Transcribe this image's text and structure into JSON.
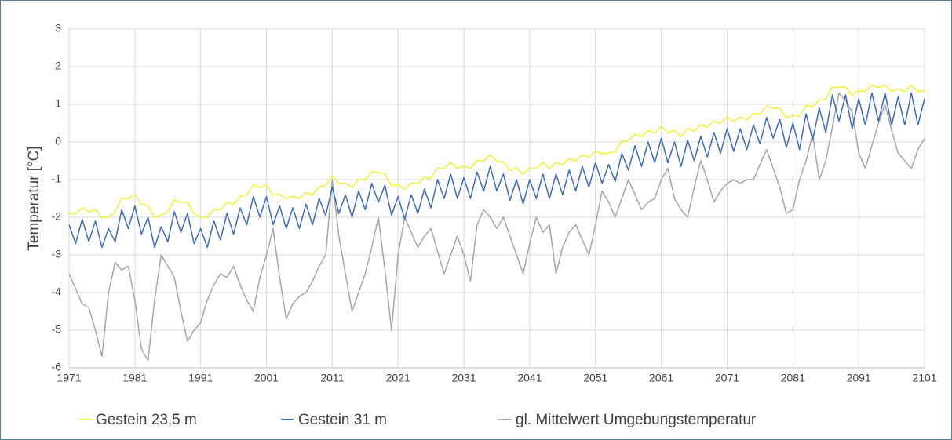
{
  "chart_data": {
    "type": "line",
    "y_label": "Temperatur [°C]",
    "legend": "bottom",
    "grid": true,
    "xlim": [
      1971,
      2101
    ],
    "xticks": [
      1971,
      1981,
      1991,
      2001,
      2011,
      2021,
      2031,
      2041,
      2051,
      2061,
      2071,
      2081,
      2091,
      2101
    ],
    "ylim": [
      -6,
      3
    ],
    "yticks": [
      -6,
      -5,
      -4,
      -3,
      -2,
      -1,
      0,
      1,
      2,
      3
    ],
    "x": [
      1971,
      1972,
      1973,
      1974,
      1975,
      1976,
      1977,
      1978,
      1979,
      1980,
      1981,
      1982,
      1983,
      1984,
      1985,
      1986,
      1987,
      1988,
      1989,
      1990,
      1991,
      1992,
      1993,
      1994,
      1995,
      1996,
      1997,
      1998,
      1999,
      2000,
      2001,
      2002,
      2003,
      2004,
      2005,
      2006,
      2007,
      2008,
      2009,
      2010,
      2011,
      2012,
      2013,
      2014,
      2015,
      2016,
      2017,
      2018,
      2019,
      2020,
      2021,
      2022,
      2023,
      2024,
      2025,
      2026,
      2027,
      2028,
      2029,
      2030,
      2031,
      2032,
      2033,
      2034,
      2035,
      2036,
      2037,
      2038,
      2039,
      2040,
      2041,
      2042,
      2043,
      2044,
      2045,
      2046,
      2047,
      2048,
      2049,
      2050,
      2051,
      2052,
      2053,
      2054,
      2055,
      2056,
      2057,
      2058,
      2059,
      2060,
      2061,
      2062,
      2063,
      2064,
      2065,
      2066,
      2067,
      2068,
      2069,
      2070,
      2071,
      2072,
      2073,
      2074,
      2075,
      2076,
      2077,
      2078,
      2079,
      2080,
      2081,
      2082,
      2083,
      2084,
      2085,
      2086,
      2087,
      2088,
      2089,
      2090,
      2091,
      2092,
      2093,
      2094,
      2095,
      2096,
      2097,
      2098,
      2099,
      2100,
      2101
    ],
    "series": [
      {
        "name": "Gestein 23,5 m",
        "color": "#f2f230",
        "values": [
          -1.89,
          -1.91,
          -1.74,
          -1.86,
          -1.79,
          -2.01,
          -1.99,
          -1.86,
          -1.49,
          -1.51,
          -1.39,
          -1.66,
          -1.69,
          -2.01,
          -1.94,
          -1.86,
          -1.54,
          -1.61,
          -1.59,
          -1.91,
          -1.99,
          -2.01,
          -1.79,
          -1.81,
          -1.59,
          -1.66,
          -1.44,
          -1.41,
          -1.14,
          -1.21,
          -1.14,
          -1.41,
          -1.39,
          -1.51,
          -1.44,
          -1.51,
          -1.34,
          -1.41,
          -1.19,
          -1.16,
          -0.89,
          -1.11,
          -1.09,
          -1.21,
          -0.99,
          -1.01,
          -0.79,
          -0.81,
          -0.84,
          -1.16,
          -1.14,
          -1.26,
          -1.09,
          -1.11,
          -0.94,
          -0.96,
          -0.69,
          -0.71,
          -0.54,
          -0.71,
          -0.64,
          -0.71,
          -0.49,
          -0.51,
          -0.34,
          -0.51,
          -0.54,
          -0.76,
          -0.69,
          -0.86,
          -0.69,
          -0.71,
          -0.54,
          -0.71,
          -0.54,
          -0.61,
          -0.44,
          -0.51,
          -0.34,
          -0.41,
          -0.24,
          -0.31,
          -0.29,
          -0.26,
          0.01,
          0.04,
          0.21,
          0.14,
          0.31,
          0.24,
          0.41,
          0.24,
          0.31,
          0.14,
          0.36,
          0.29,
          0.46,
          0.39,
          0.56,
          0.49,
          0.66,
          0.54,
          0.66,
          0.59,
          0.76,
          0.74,
          0.96,
          0.89,
          0.91,
          0.64,
          0.71,
          0.69,
          0.96,
          0.94,
          1.11,
          1.14,
          1.46,
          1.44,
          1.46,
          1.24,
          1.36,
          1.34,
          1.51,
          1.44,
          1.51,
          1.34,
          1.41,
          1.34,
          1.51,
          1.34,
          1.36
        ]
      },
      {
        "name": "Gestein 31 m",
        "color": "#3a6bbf",
        "values": [
          -2.2,
          -2.7,
          -2.05,
          -2.65,
          -2.1,
          -2.8,
          -2.3,
          -2.65,
          -1.8,
          -2.3,
          -1.7,
          -2.45,
          -2.0,
          -2.8,
          -2.25,
          -2.65,
          -1.85,
          -2.4,
          -1.9,
          -2.7,
          -2.3,
          -2.8,
          -2.1,
          -2.6,
          -1.9,
          -2.45,
          -1.75,
          -2.2,
          -1.45,
          -2.0,
          -1.45,
          -2.2,
          -1.7,
          -2.3,
          -1.75,
          -2.3,
          -1.65,
          -2.2,
          -1.5,
          -1.95,
          -1.2,
          -1.9,
          -1.4,
          -2.0,
          -1.3,
          -1.8,
          -1.1,
          -1.6,
          -1.15,
          -1.95,
          -1.45,
          -2.05,
          -1.4,
          -1.9,
          -1.25,
          -1.75,
          -1.0,
          -1.5,
          -0.85,
          -1.5,
          -0.95,
          -1.5,
          -0.8,
          -1.3,
          -0.65,
          -1.3,
          -0.85,
          -1.55,
          -1.0,
          -1.65,
          -1.0,
          -1.5,
          -0.85,
          -1.5,
          -0.85,
          -1.4,
          -0.75,
          -1.3,
          -0.65,
          -1.2,
          -0.55,
          -1.1,
          -0.6,
          -1.05,
          -0.3,
          -0.75,
          -0.1,
          -0.65,
          0.0,
          -0.55,
          0.1,
          -0.55,
          0.0,
          -0.65,
          0.05,
          -0.5,
          0.15,
          -0.4,
          0.25,
          -0.3,
          0.35,
          -0.25,
          0.35,
          -0.2,
          0.45,
          -0.05,
          0.65,
          0.1,
          0.6,
          -0.15,
          0.5,
          -0.2,
          0.75,
          0.05,
          0.9,
          0.25,
          1.25,
          0.55,
          1.25,
          0.35,
          1.15,
          0.45,
          1.3,
          0.55,
          1.3,
          0.45,
          1.2,
          0.45,
          1.3,
          0.45,
          1.15
        ]
      },
      {
        "name": "gl. Mittelwert Umgebungstemperatur",
        "color": "#a6a6a6",
        "values": [
          -3.5,
          -3.9,
          -4.3,
          -4.4,
          -5.0,
          -5.7,
          -4.0,
          -3.2,
          -3.4,
          -3.3,
          -4.2,
          -5.5,
          -5.8,
          -4.2,
          -3.0,
          -3.3,
          -3.6,
          -4.5,
          -5.3,
          -5.0,
          -4.8,
          -4.2,
          -3.8,
          -3.5,
          -3.6,
          -3.3,
          -3.8,
          -4.2,
          -4.5,
          -3.6,
          -3.0,
          -2.3,
          -3.6,
          -4.7,
          -4.3,
          -4.1,
          -4.0,
          -3.7,
          -3.3,
          -3.0,
          -1.0,
          -2.5,
          -3.5,
          -4.5,
          -4.0,
          -3.5,
          -2.8,
          -2.0,
          -3.4,
          -5.0,
          -3.0,
          -2.0,
          -2.4,
          -2.8,
          -2.5,
          -2.3,
          -2.9,
          -3.5,
          -3.0,
          -2.5,
          -3.0,
          -3.7,
          -2.2,
          -1.8,
          -2.0,
          -2.3,
          -2.0,
          -2.5,
          -3.0,
          -3.5,
          -2.7,
          -2.0,
          -2.4,
          -2.2,
          -3.5,
          -2.8,
          -2.4,
          -2.2,
          -2.6,
          -3.0,
          -2.2,
          -1.3,
          -1.6,
          -2.0,
          -1.5,
          -1.0,
          -1.4,
          -1.8,
          -1.6,
          -1.5,
          -1.0,
          -0.7,
          -1.5,
          -1.8,
          -2.0,
          -1.2,
          -0.5,
          -1.0,
          -1.6,
          -1.3,
          -1.1,
          -1.0,
          -1.1,
          -1.0,
          -1.0,
          -0.6,
          -0.2,
          -0.7,
          -1.2,
          -1.9,
          -1.8,
          -1.0,
          -0.5,
          0.2,
          -1.0,
          -0.5,
          0.4,
          1.3,
          1.1,
          0.8,
          -0.3,
          -0.7,
          -0.1,
          0.5,
          1.0,
          0.3,
          -0.3,
          -0.5,
          -0.7,
          -0.2,
          0.1
        ]
      }
    ]
  }
}
